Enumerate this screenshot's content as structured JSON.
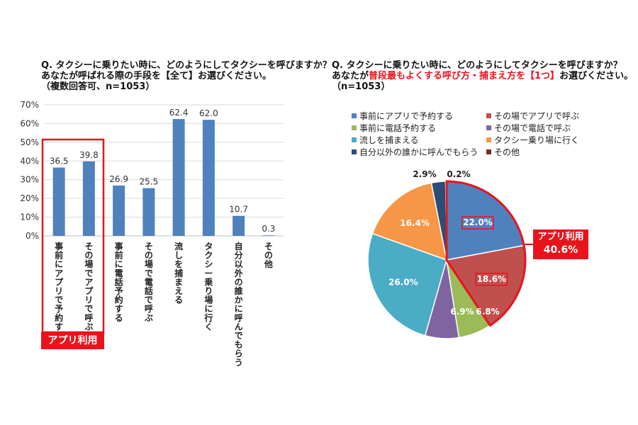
{
  "left": {
    "title_lines": [
      "Q. タクシーに乗りたい時に、どのようにしてタクシーを呼びますか？",
      "あなたが呼ばれる際の手段を【全て】お選びください。",
      "（複数回答可、n=1053）"
    ],
    "highlight_label": "アプリ利用"
  },
  "right": {
    "title_line1": "Q. タクシーに乗りたい時に、どのようにしてタクシーを呼びますか？",
    "title_line2_pre": "あなたが",
    "title_line2_red": "普段最もよくする呼び方・捕まえ方を【1つ】",
    "title_line2_post": "お選びください。",
    "title_line3": "（n=1053）",
    "callout_label": "アプリ利用",
    "callout_value": "40.6%"
  },
  "chart_data": [
    {
      "type": "bar",
      "categories": [
        "事前にアプリで予約する",
        "その場でアプリで呼ぶ",
        "事前に電話予約する",
        "その場で電話で呼ぶ",
        "流しを捕まえる",
        "タクシー乗り場に行く",
        "自分以外の誰かに呼んでもらう",
        "その他"
      ],
      "values": [
        36.5,
        39.8,
        26.9,
        25.5,
        62.4,
        62.0,
        10.7,
        0.3
      ],
      "data_labels": [
        "36.5",
        "39.8",
        "26.9",
        "25.5",
        "62.4",
        "62.0",
        "10.7",
        "0.3"
      ],
      "y_ticks": [
        "70%",
        "60%",
        "50%",
        "40%",
        "30%",
        "20%",
        "10%",
        "0%"
      ],
      "ylim": [
        0,
        70
      ],
      "grid": true,
      "color": "#4f81bd"
    },
    {
      "type": "pie",
      "labels": [
        "事前にアプリで予約する",
        "その場でアプリで呼ぶ",
        "事前に電話予約する",
        "その場で電話で呼ぶ",
        "流しを捕まえる",
        "タクシー乗り場に行く",
        "自分以外の誰かに呼んでもらう",
        "その他"
      ],
      "values": [
        22.0,
        18.6,
        6.8,
        6.9,
        26.0,
        16.4,
        2.9,
        0.2
      ],
      "data_labels": [
        "22.0%",
        "18.6%",
        "6.8%",
        "6.9%",
        "26.0%",
        "16.4%",
        "2.9%",
        "0.2%"
      ],
      "colors": [
        "#4f81bd",
        "#c0504d",
        "#9bbb59",
        "#8064a2",
        "#4bacc6",
        "#f79646",
        "#2c4d75",
        "#772c2a"
      ],
      "legend_position": "top"
    }
  ]
}
